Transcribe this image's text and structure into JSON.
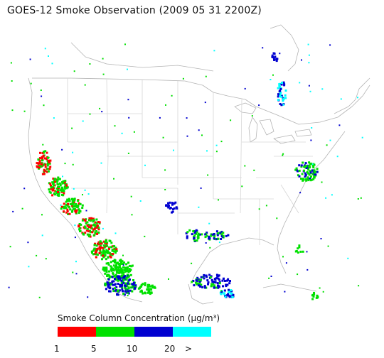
{
  "title": "GOES-12 Smoke Observation (2009 05 31  2200Z)",
  "legend": {
    "title": "Smoke Column Concentration (µg/m³)",
    "segments": [
      {
        "color": "#ff0000",
        "from": 1,
        "to": 5
      },
      {
        "color": "#00e000",
        "from": 5,
        "to": 10
      },
      {
        "color": "#0000d0",
        "from": 10,
        "to": 20
      },
      {
        "color": "#00ffff",
        "from": 20,
        "to": ">"
      }
    ],
    "ticks": [
      "1",
      "5",
      "10",
      "20",
      ">"
    ]
  },
  "colors": {
    "land_outline": "#b4b4b4",
    "water_fill": "#ffffff",
    "background": "#ffffff"
  }
}
